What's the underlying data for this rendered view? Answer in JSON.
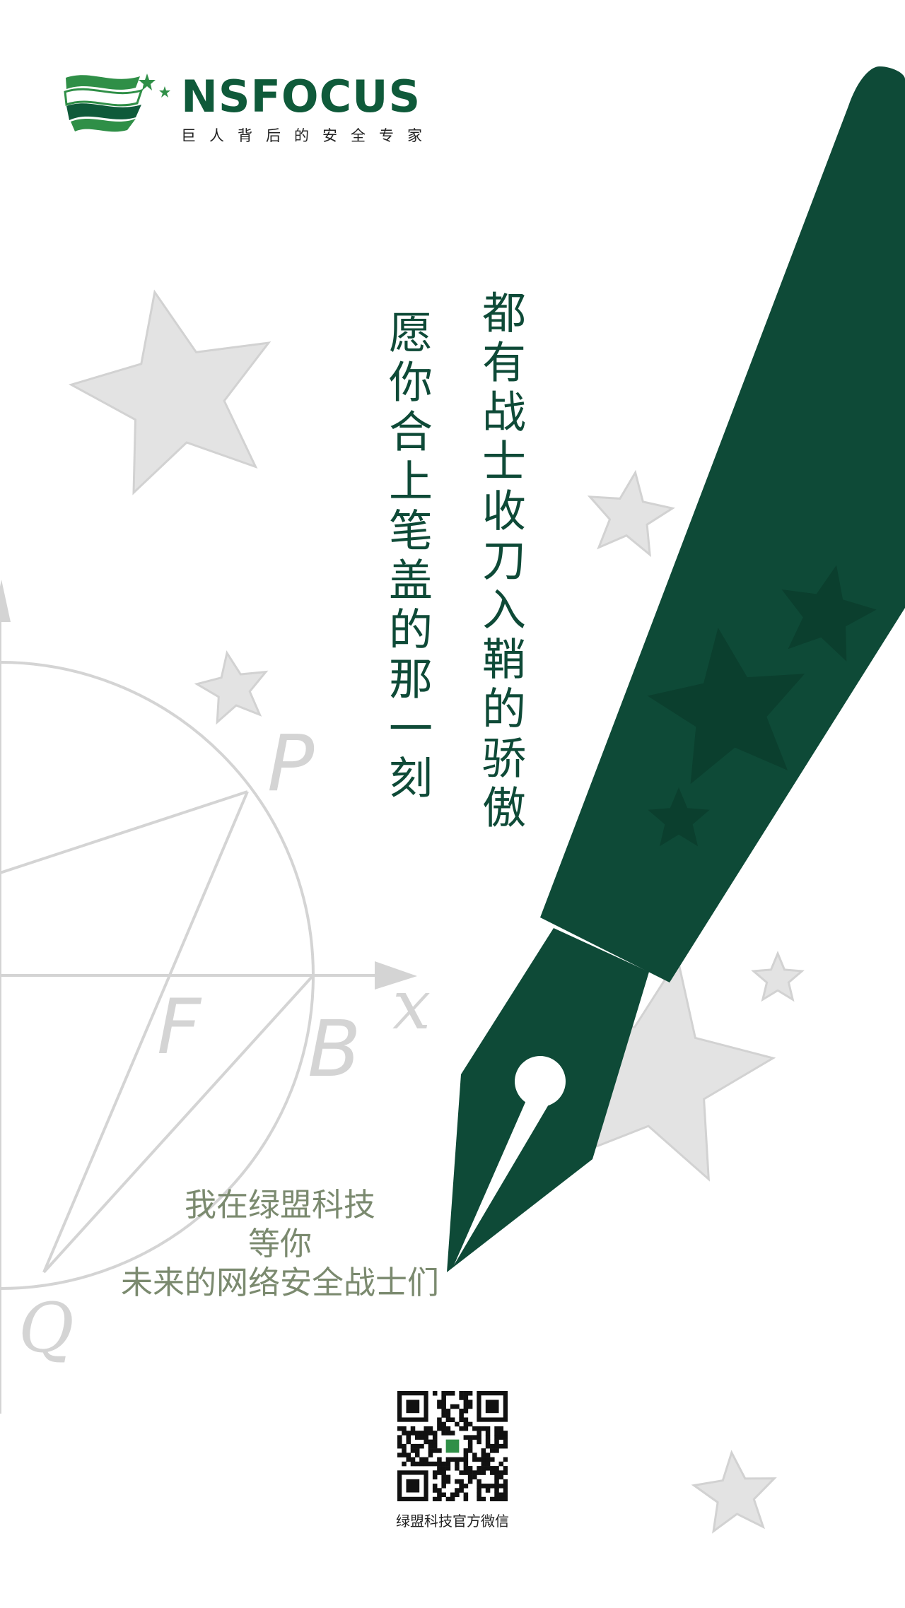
{
  "brand": {
    "name": "NSFOCUS",
    "tagline": "巨人背后的安全专家",
    "primary_color": "#0e4a37"
  },
  "headline": {
    "line1": "都有战士收刀入鞘的骄傲",
    "line2": "愿你合上笔盖的那一刻"
  },
  "diagram_labels": {
    "p": "P",
    "f": "F",
    "b": "B",
    "x": "x",
    "q": "Q"
  },
  "invite": {
    "line1": "我在绿盟科技",
    "line2": "等你",
    "line3": "未来的网络安全战士们"
  },
  "qr": {
    "caption": "绿盟科技官方微信"
  }
}
